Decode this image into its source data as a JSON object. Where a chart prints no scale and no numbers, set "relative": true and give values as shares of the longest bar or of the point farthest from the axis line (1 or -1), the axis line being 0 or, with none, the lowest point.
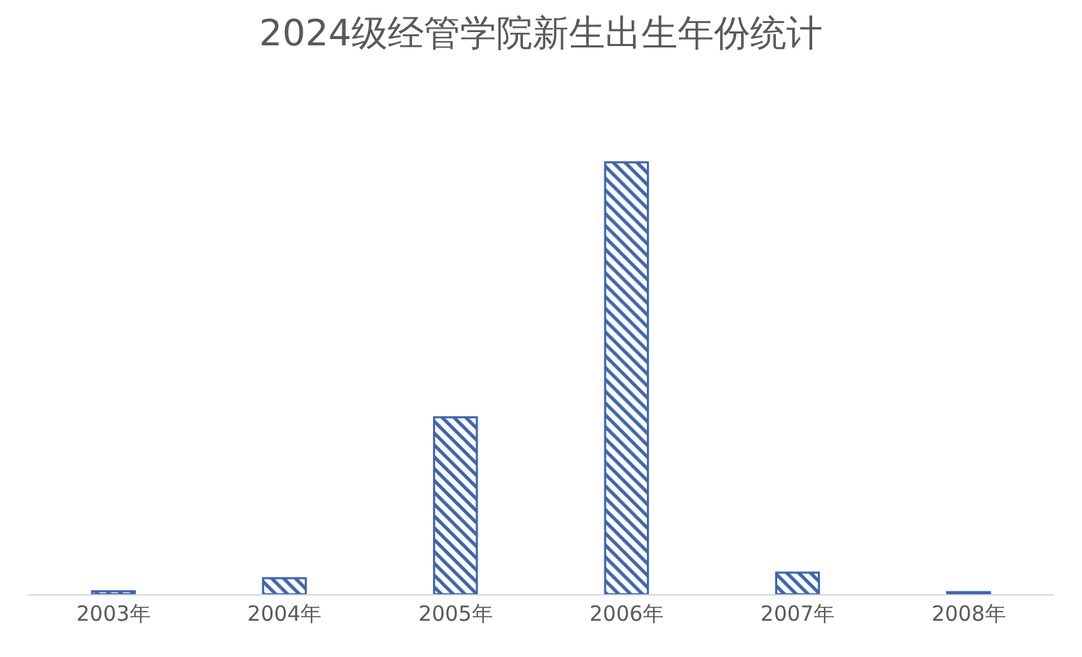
{
  "chart_data": {
    "type": "bar",
    "title": "2024级经管学院新生出生年份统计",
    "relative": true,
    "categories": [
      "2003年",
      "2004年",
      "2005年",
      "2006年",
      "2007年",
      "2008年"
    ],
    "values": [
      0.007,
      0.037,
      0.41,
      1,
      0.05,
      0.005
    ],
    "color": "#3f64ad",
    "grid": false
  }
}
